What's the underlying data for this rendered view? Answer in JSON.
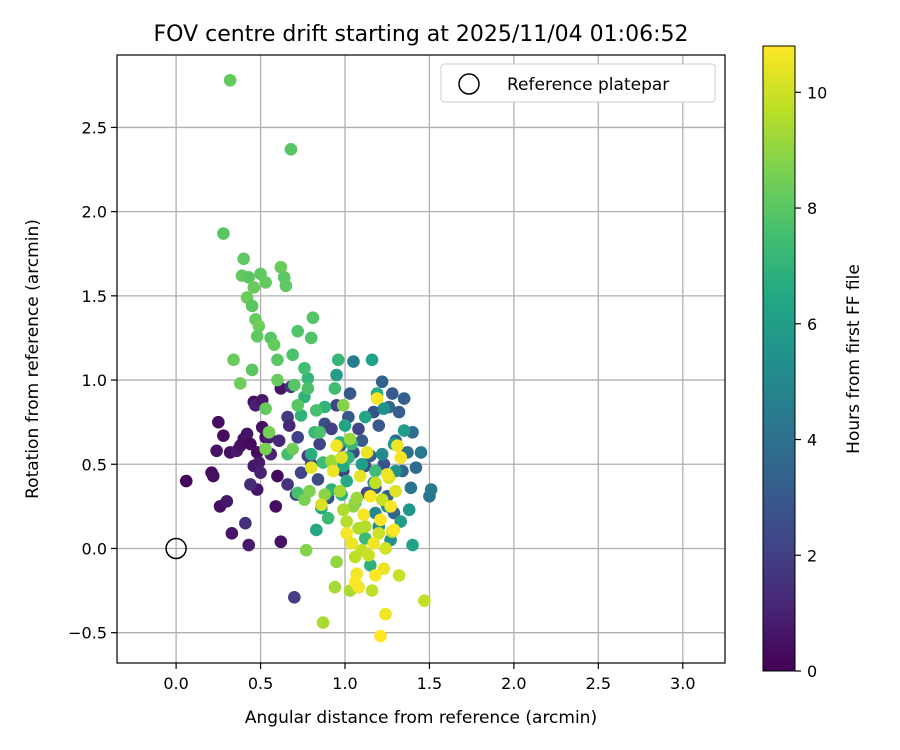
{
  "chart_data": {
    "type": "scatter",
    "title": "FOV centre drift starting at 2025/11/04 01:06:52",
    "xlabel": "Angular distance from reference (arcmin)",
    "ylabel": "Rotation from reference (arcmin)",
    "xlim": [
      -0.35,
      3.25
    ],
    "ylim": [
      -0.68,
      2.93
    ],
    "xticks": [
      0.0,
      0.5,
      1.0,
      1.5,
      2.0,
      2.5,
      3.0
    ],
    "xtick_labels": [
      "0.0",
      "0.5",
      "1.0",
      "1.5",
      "2.0",
      "2.5",
      "3.0"
    ],
    "yticks": [
      -0.5,
      0.0,
      0.5,
      1.0,
      1.5,
      2.0,
      2.5
    ],
    "ytick_labels": [
      "−0.5",
      "0.0",
      "0.5",
      "1.0",
      "1.5",
      "2.0",
      "2.5"
    ],
    "grid": true,
    "legend": {
      "placement": "upper right",
      "entries": [
        "Reference platepar"
      ]
    },
    "reference_point": {
      "x": 0.0,
      "y": 0.0
    },
    "colorbar": {
      "label": "Hours from first FF file",
      "min": 0,
      "max": 10.8,
      "ticks": [
        0,
        2,
        4,
        6,
        8,
        10
      ],
      "tick_labels": [
        "0",
        "2",
        "4",
        "6",
        "8",
        "10"
      ],
      "colormap": "viridis"
    },
    "points": [
      [
        0.06,
        0.4,
        0.2
      ],
      [
        0.21,
        0.45,
        0.3
      ],
      [
        0.22,
        0.43,
        0.5
      ],
      [
        0.25,
        0.75,
        0.4
      ],
      [
        0.24,
        0.58,
        0.6
      ],
      [
        0.28,
        0.67,
        0.3
      ],
      [
        0.26,
        0.25,
        0.4
      ],
      [
        0.3,
        0.28,
        0.7
      ],
      [
        0.32,
        0.57,
        0.5
      ],
      [
        0.33,
        0.09,
        0.6
      ],
      [
        0.36,
        0.58,
        0.8
      ],
      [
        0.38,
        0.61,
        0.5
      ],
      [
        0.4,
        0.65,
        0.4
      ],
      [
        0.42,
        0.68,
        0.6
      ],
      [
        0.44,
        0.62,
        0.3
      ],
      [
        0.46,
        0.49,
        0.7
      ],
      [
        0.46,
        0.87,
        0.5
      ],
      [
        0.47,
        0.85,
        0.9
      ],
      [
        0.48,
        0.57,
        0.4
      ],
      [
        0.48,
        0.35,
        0.6
      ],
      [
        0.49,
        0.51,
        0.8
      ],
      [
        0.5,
        0.45,
        1.0
      ],
      [
        0.51,
        0.72,
        0.5
      ],
      [
        0.51,
        0.88,
        0.7
      ],
      [
        0.53,
        0.66,
        0.4
      ],
      [
        0.55,
        0.66,
        0.9
      ],
      [
        0.56,
        0.56,
        1.1
      ],
      [
        0.59,
        0.25,
        0.4
      ],
      [
        0.6,
        0.43,
        0.3
      ],
      [
        0.61,
        0.64,
        1.2
      ],
      [
        0.62,
        0.04,
        0.5
      ],
      [
        0.62,
        0.95,
        0.6
      ],
      [
        0.43,
        0.02,
        0.8
      ],
      [
        0.41,
        0.15,
        1.5
      ],
      [
        0.44,
        0.38,
        1.3
      ],
      [
        0.66,
        0.38,
        1.6
      ],
      [
        0.66,
        0.78,
        1.8
      ],
      [
        0.67,
        0.73,
        1.2
      ],
      [
        0.68,
        0.96,
        1.7
      ],
      [
        0.7,
        -0.29,
        2.0
      ],
      [
        0.71,
        0.32,
        1.9
      ],
      [
        0.72,
        0.66,
        2.1
      ],
      [
        0.74,
        0.45,
        2.2
      ],
      [
        0.78,
        0.55,
        2.0
      ],
      [
        0.8,
        0.5,
        2.4
      ],
      [
        0.84,
        0.41,
        2.5
      ],
      [
        0.85,
        0.62,
        2.2
      ],
      [
        0.88,
        0.74,
        2.6
      ],
      [
        0.9,
        0.3,
        2.8
      ],
      [
        0.92,
        0.71,
        2.0
      ],
      [
        0.95,
        0.85,
        2.3
      ],
      [
        0.97,
        0.61,
        2.7
      ],
      [
        0.99,
        0.46,
        2.1
      ],
      [
        1.02,
        0.78,
        2.9
      ],
      [
        1.03,
        0.92,
        3.0
      ],
      [
        1.05,
        0.57,
        2.5
      ],
      [
        1.08,
        0.71,
        2.2
      ],
      [
        1.1,
        0.64,
        3.1
      ],
      [
        1.12,
        0.49,
        2.6
      ],
      [
        1.13,
        0.33,
        2.4
      ],
      [
        1.15,
        0.55,
        3.2
      ],
      [
        1.17,
        0.81,
        2.8
      ],
      [
        1.18,
        0.36,
        2.9
      ],
      [
        1.2,
        0.73,
        3.0
      ],
      [
        1.22,
        0.99,
        3.4
      ],
      [
        1.23,
        0.5,
        2.7
      ],
      [
        1.25,
        0.31,
        3.3
      ],
      [
        1.26,
        0.84,
        3.6
      ],
      [
        1.28,
        0.92,
        3.0
      ],
      [
        1.29,
        0.21,
        3.5
      ],
      [
        1.3,
        0.64,
        3.8
      ],
      [
        1.32,
        0.81,
        3.2
      ],
      [
        1.34,
        0.46,
        3.6
      ],
      [
        1.35,
        0.89,
        3.3
      ],
      [
        1.37,
        0.57,
        4.0
      ],
      [
        1.39,
        0.36,
        4.2
      ],
      [
        1.4,
        0.69,
        3.9
      ],
      [
        1.42,
        0.48,
        3.7
      ],
      [
        1.45,
        0.57,
        4.3
      ],
      [
        1.5,
        0.31,
        4.1
      ],
      [
        1.51,
        0.35,
        4.4
      ],
      [
        1.05,
        1.11,
        4.5
      ],
      [
        1.17,
        0.39,
        4.8
      ],
      [
        1.18,
        0.21,
        5.0
      ],
      [
        1.2,
        0.13,
        5.2
      ],
      [
        1.22,
        0.56,
        5.1
      ],
      [
        1.23,
        0.83,
        5.4
      ],
      [
        1.25,
        0.25,
        5.3
      ],
      [
        1.27,
        0.05,
        5.6
      ],
      [
        1.29,
        0.62,
        5.8
      ],
      [
        1.3,
        0.46,
        5.5
      ],
      [
        1.33,
        0.16,
        6.0
      ],
      [
        1.35,
        0.7,
        5.9
      ],
      [
        1.38,
        0.23,
        5.7
      ],
      [
        1.4,
        0.02,
        6.2
      ],
      [
        1.1,
        0.5,
        6.1
      ],
      [
        1.08,
        -0.23,
        5.4
      ],
      [
        1.12,
        0.78,
        6.4
      ],
      [
        1.16,
        1.12,
        6.2
      ],
      [
        1.19,
        0.92,
        6.6
      ],
      [
        0.95,
        1.03,
        6.0
      ],
      [
        0.97,
        0.63,
        6.8
      ],
      [
        0.99,
        0.49,
        6.5
      ],
      [
        1.0,
        0.73,
        6.3
      ],
      [
        1.02,
        0.54,
        7.0
      ],
      [
        0.76,
        0.9,
        6.9
      ],
      [
        0.78,
        1.01,
        7.1
      ],
      [
        0.8,
        0.56,
        6.7
      ],
      [
        0.82,
        0.69,
        7.2
      ],
      [
        0.83,
        0.11,
        6.5
      ],
      [
        0.86,
        0.24,
        6.4
      ],
      [
        0.88,
        0.84,
        7.0
      ],
      [
        0.9,
        0.18,
        7.3
      ],
      [
        0.92,
        0.35,
        6.9
      ],
      [
        0.94,
        0.95,
        7.4
      ],
      [
        0.96,
        1.12,
        7.1
      ],
      [
        0.98,
        0.32,
        6.8
      ],
      [
        1.01,
        0.4,
        6.6
      ],
      [
        1.04,
        0.62,
        7.2
      ],
      [
        1.06,
        0.27,
        7.5
      ],
      [
        1.09,
        0.12,
        6.7
      ],
      [
        1.12,
        0.06,
        7.3
      ],
      [
        1.15,
        -0.1,
        6.9
      ],
      [
        1.18,
        0.46,
        7.4
      ],
      [
        0.72,
        0.33,
        7.6
      ],
      [
        0.74,
        0.79,
        7.0
      ],
      [
        0.76,
        1.07,
        7.5
      ],
      [
        0.78,
        0.95,
        7.7
      ],
      [
        0.8,
        1.25,
        7.8
      ],
      [
        0.81,
        1.37,
        7.9
      ],
      [
        0.83,
        0.82,
        7.6
      ],
      [
        0.85,
        0.69,
        7.7
      ],
      [
        0.87,
        0.51,
        7.4
      ],
      [
        0.7,
        0.97,
        7.9
      ],
      [
        0.72,
        0.85,
        8.0
      ],
      [
        0.66,
        0.56,
        7.5
      ],
      [
        0.64,
        1.61,
        8.0
      ],
      [
        0.68,
        2.37,
        7.9
      ],
      [
        0.32,
        2.78,
        8.2
      ],
      [
        0.28,
        1.87,
        8.0
      ],
      [
        0.4,
        1.72,
        8.1
      ],
      [
        0.39,
        1.62,
        8.2
      ],
      [
        0.43,
        1.61,
        8.0
      ],
      [
        0.46,
        1.55,
        8.3
      ],
      [
        0.5,
        1.63,
        8.1
      ],
      [
        0.53,
        1.58,
        8.2
      ],
      [
        0.62,
        1.67,
        8.3
      ],
      [
        0.65,
        1.56,
        8.1
      ],
      [
        0.72,
        1.29,
        7.8
      ],
      [
        0.42,
        1.49,
        8.3
      ],
      [
        0.45,
        1.44,
        8.0
      ],
      [
        0.47,
        1.36,
        8.2
      ],
      [
        0.49,
        1.32,
        8.4
      ],
      [
        0.48,
        1.26,
        8.1
      ],
      [
        0.56,
        1.25,
        7.9
      ],
      [
        0.58,
        1.21,
        8.2
      ],
      [
        0.6,
        1.12,
        8.0
      ],
      [
        0.69,
        1.15,
        7.7
      ],
      [
        0.34,
        1.12,
        8.3
      ],
      [
        0.38,
        0.98,
        8.4
      ],
      [
        0.45,
        1.06,
        8.0
      ],
      [
        0.53,
        0.83,
        8.2
      ],
      [
        0.55,
        0.69,
        8.5
      ],
      [
        0.53,
        0.59,
        8.6
      ],
      [
        0.6,
        1.0,
        8.3
      ],
      [
        0.69,
        0.59,
        8.4
      ],
      [
        0.76,
        0.29,
        8.6
      ],
      [
        0.79,
        0.34,
        8.7
      ],
      [
        0.77,
        -0.01,
        8.8
      ],
      [
        0.88,
        0.32,
        8.9
      ],
      [
        0.95,
        -0.08,
        9.0
      ],
      [
        0.99,
        0.85,
        8.8
      ],
      [
        1.03,
        0.65,
        9.1
      ],
      [
        1.05,
        0.25,
        9.0
      ],
      [
        1.07,
        0.3,
        9.2
      ],
      [
        0.94,
        -0.23,
        9.3
      ],
      [
        0.87,
        -0.44,
        9.4
      ],
      [
        0.92,
        0.52,
        9.2
      ],
      [
        0.97,
        0.34,
        9.3
      ],
      [
        0.99,
        0.23,
        9.5
      ],
      [
        1.01,
        0.16,
        9.6
      ],
      [
        1.03,
        -0.25,
        9.4
      ],
      [
        1.06,
        -0.05,
        9.7
      ],
      [
        1.08,
        0.12,
        9.5
      ],
      [
        1.1,
        -0.01,
        9.8
      ],
      [
        1.12,
        0.13,
        9.6
      ],
      [
        1.14,
        -0.04,
        9.9
      ],
      [
        1.16,
        -0.25,
        9.7
      ],
      [
        1.18,
        0.39,
        9.8
      ],
      [
        1.2,
        0.09,
        10.0
      ],
      [
        1.22,
        0.29,
        9.9
      ],
      [
        1.24,
        0.0,
        10.1
      ],
      [
        1.26,
        0.42,
        10.2
      ],
      [
        1.28,
        0.1,
        10.0
      ],
      [
        1.3,
        0.34,
        10.3
      ],
      [
        1.32,
        -0.16,
        9.9
      ],
      [
        1.47,
        -0.31,
        9.8
      ],
      [
        0.8,
        0.48,
        10.4
      ],
      [
        0.86,
        0.26,
        10.2
      ],
      [
        0.93,
        0.46,
        10.5
      ],
      [
        0.95,
        0.61,
        10.6
      ],
      [
        0.98,
        0.54,
        10.3
      ],
      [
        1.01,
        0.09,
        10.7
      ],
      [
        1.04,
        0.03,
        10.5
      ],
      [
        1.07,
        -0.15,
        10.6
      ],
      [
        1.09,
        0.43,
        10.4
      ],
      [
        1.11,
        0.2,
        10.7
      ],
      [
        1.13,
        0.57,
        10.5
      ],
      [
        1.15,
        0.31,
        10.8
      ],
      [
        1.17,
        0.03,
        10.6
      ],
      [
        1.19,
        0.89,
        10.7
      ],
      [
        1.21,
        0.17,
        10.8
      ],
      [
        1.23,
        -0.12,
        10.5
      ],
      [
        1.25,
        0.44,
        10.6
      ],
      [
        1.27,
        0.25,
        10.7
      ],
      [
        1.29,
        0.11,
        10.8
      ],
      [
        1.31,
        0.61,
        10.6
      ],
      [
        1.33,
        0.54,
        10.7
      ],
      [
        1.06,
        -0.2,
        10.8
      ],
      [
        1.08,
        -0.23,
        10.7
      ],
      [
        1.18,
        -0.16,
        10.8
      ],
      [
        1.24,
        -0.39,
        10.6
      ],
      [
        1.21,
        -0.52,
        10.8
      ]
    ]
  }
}
